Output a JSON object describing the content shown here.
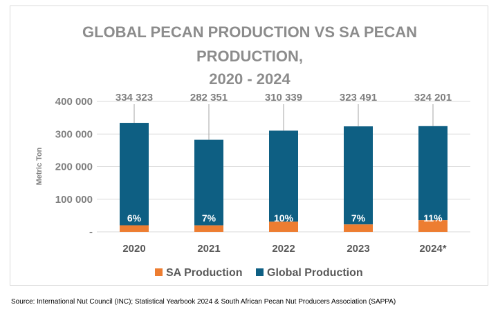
{
  "chart_data": {
    "type": "bar",
    "stacked": true,
    "title_lines": [
      "GLOBAL PECAN PRODUCTION VS SA PECAN",
      "PRODUCTION,",
      "2020 - 2024"
    ],
    "ylabel": "Metric Ton",
    "xlabel": "",
    "ylim": [
      0,
      400000
    ],
    "yticks": [
      0,
      100000,
      200000,
      300000,
      400000
    ],
    "ytick_labels": [
      "-",
      "100 000",
      "200 000",
      "300 000",
      "400 000"
    ],
    "categories": [
      "2020",
      "2021",
      "2022",
      "2023",
      "2024*"
    ],
    "totals": [
      334323,
      282351,
      310339,
      323491,
      324201
    ],
    "total_labels": [
      "334 323",
      "282 351",
      "310 339",
      "323 491",
      "324 201"
    ],
    "sa_share_labels": [
      "6%",
      "7%",
      "10%",
      "7%",
      "11%"
    ],
    "series": [
      {
        "name": "SA Production",
        "color": "#ed7d31",
        "values": [
          20059,
          19765,
          31034,
          22644,
          35662
        ]
      },
      {
        "name": "Global Production",
        "color": "#0e5f83",
        "values": [
          314264,
          262586,
          279305,
          300847,
          288539
        ]
      }
    ],
    "legend_position": "bottom",
    "grid": true
  },
  "source_note": "Source: International Nut Council (INC); Statistical Yearbook 2024 & South African Pecan Nut Producers Association (SAPPA)"
}
